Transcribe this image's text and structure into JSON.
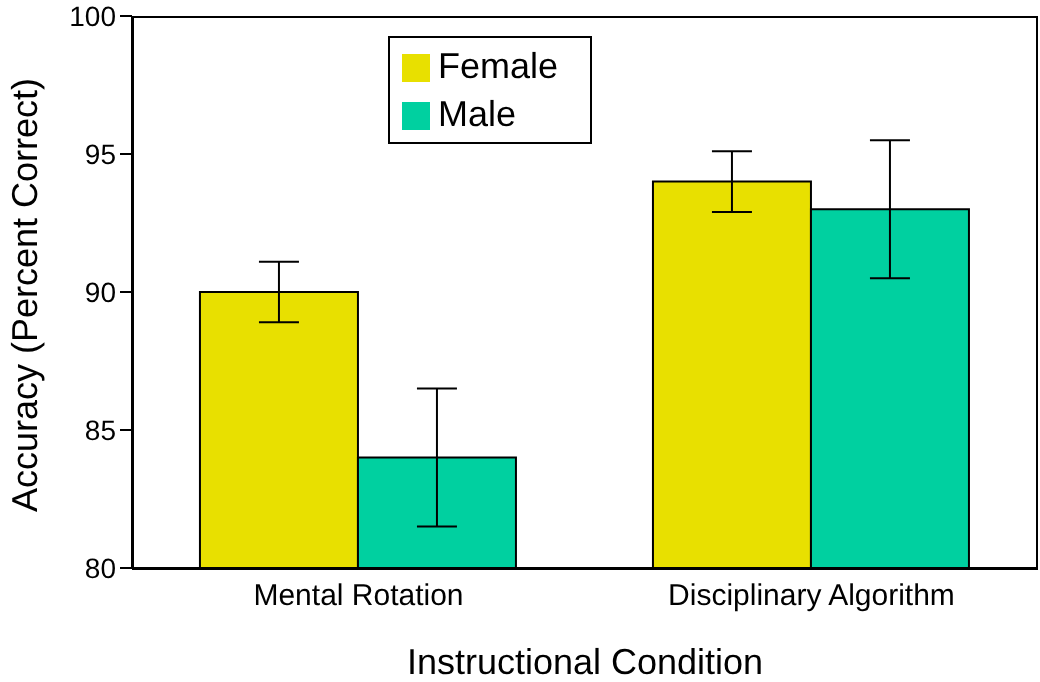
{
  "chart_data": {
    "type": "bar",
    "xlabel": "Instructional Condition",
    "ylabel": "Accuracy (Percent Correct)",
    "categories": [
      "Mental Rotation",
      "Disciplinary Algorithm"
    ],
    "series": [
      {
        "name": "Female",
        "color": "#e8e000",
        "values": [
          90,
          94
        ],
        "errors": [
          1.1,
          1.1
        ]
      },
      {
        "name": "Male",
        "color": "#00d0a0",
        "values": [
          84,
          93
        ],
        "errors": [
          2.5,
          2.5
        ]
      }
    ],
    "ylim": [
      80,
      100
    ],
    "yticks": [
      80,
      85,
      90,
      95,
      100
    ],
    "grid": false,
    "legend": "top left"
  }
}
